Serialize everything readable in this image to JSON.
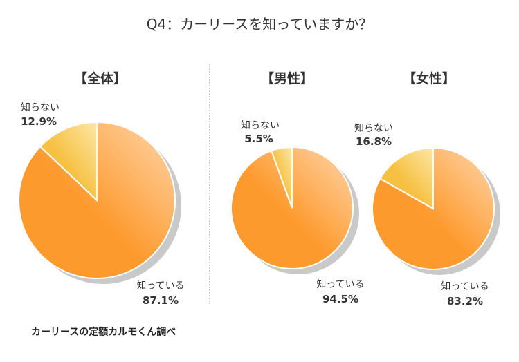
{
  "title": "Q4：カーリースを知っていますか？",
  "source": "カーリースの定額カルモくん調べ",
  "colors": {
    "known_light": "#ffd7ad",
    "known_dark": "#fd9a2e",
    "unknown_light": "#fde7a6",
    "unknown_dark": "#f6c143",
    "shadow": "#c9c9c9"
  },
  "chart_data": [
    {
      "type": "pie",
      "title": "【全体】",
      "slices": [
        {
          "label": "知っている",
          "value": 87.1,
          "value_label": "87.1%"
        },
        {
          "label": "知らない",
          "value": 12.9,
          "value_label": "12.9%"
        }
      ]
    },
    {
      "type": "pie",
      "title": "【男性】",
      "slices": [
        {
          "label": "知っている",
          "value": 94.5,
          "value_label": "94.5%"
        },
        {
          "label": "知らない",
          "value": 5.5,
          "value_label": "5.5%"
        }
      ]
    },
    {
      "type": "pie",
      "title": "【女性】",
      "slices": [
        {
          "label": "知っている",
          "value": 83.2,
          "value_label": "83.2%"
        },
        {
          "label": "知らない",
          "value": 16.8,
          "value_label": "16.8%"
        }
      ]
    }
  ]
}
